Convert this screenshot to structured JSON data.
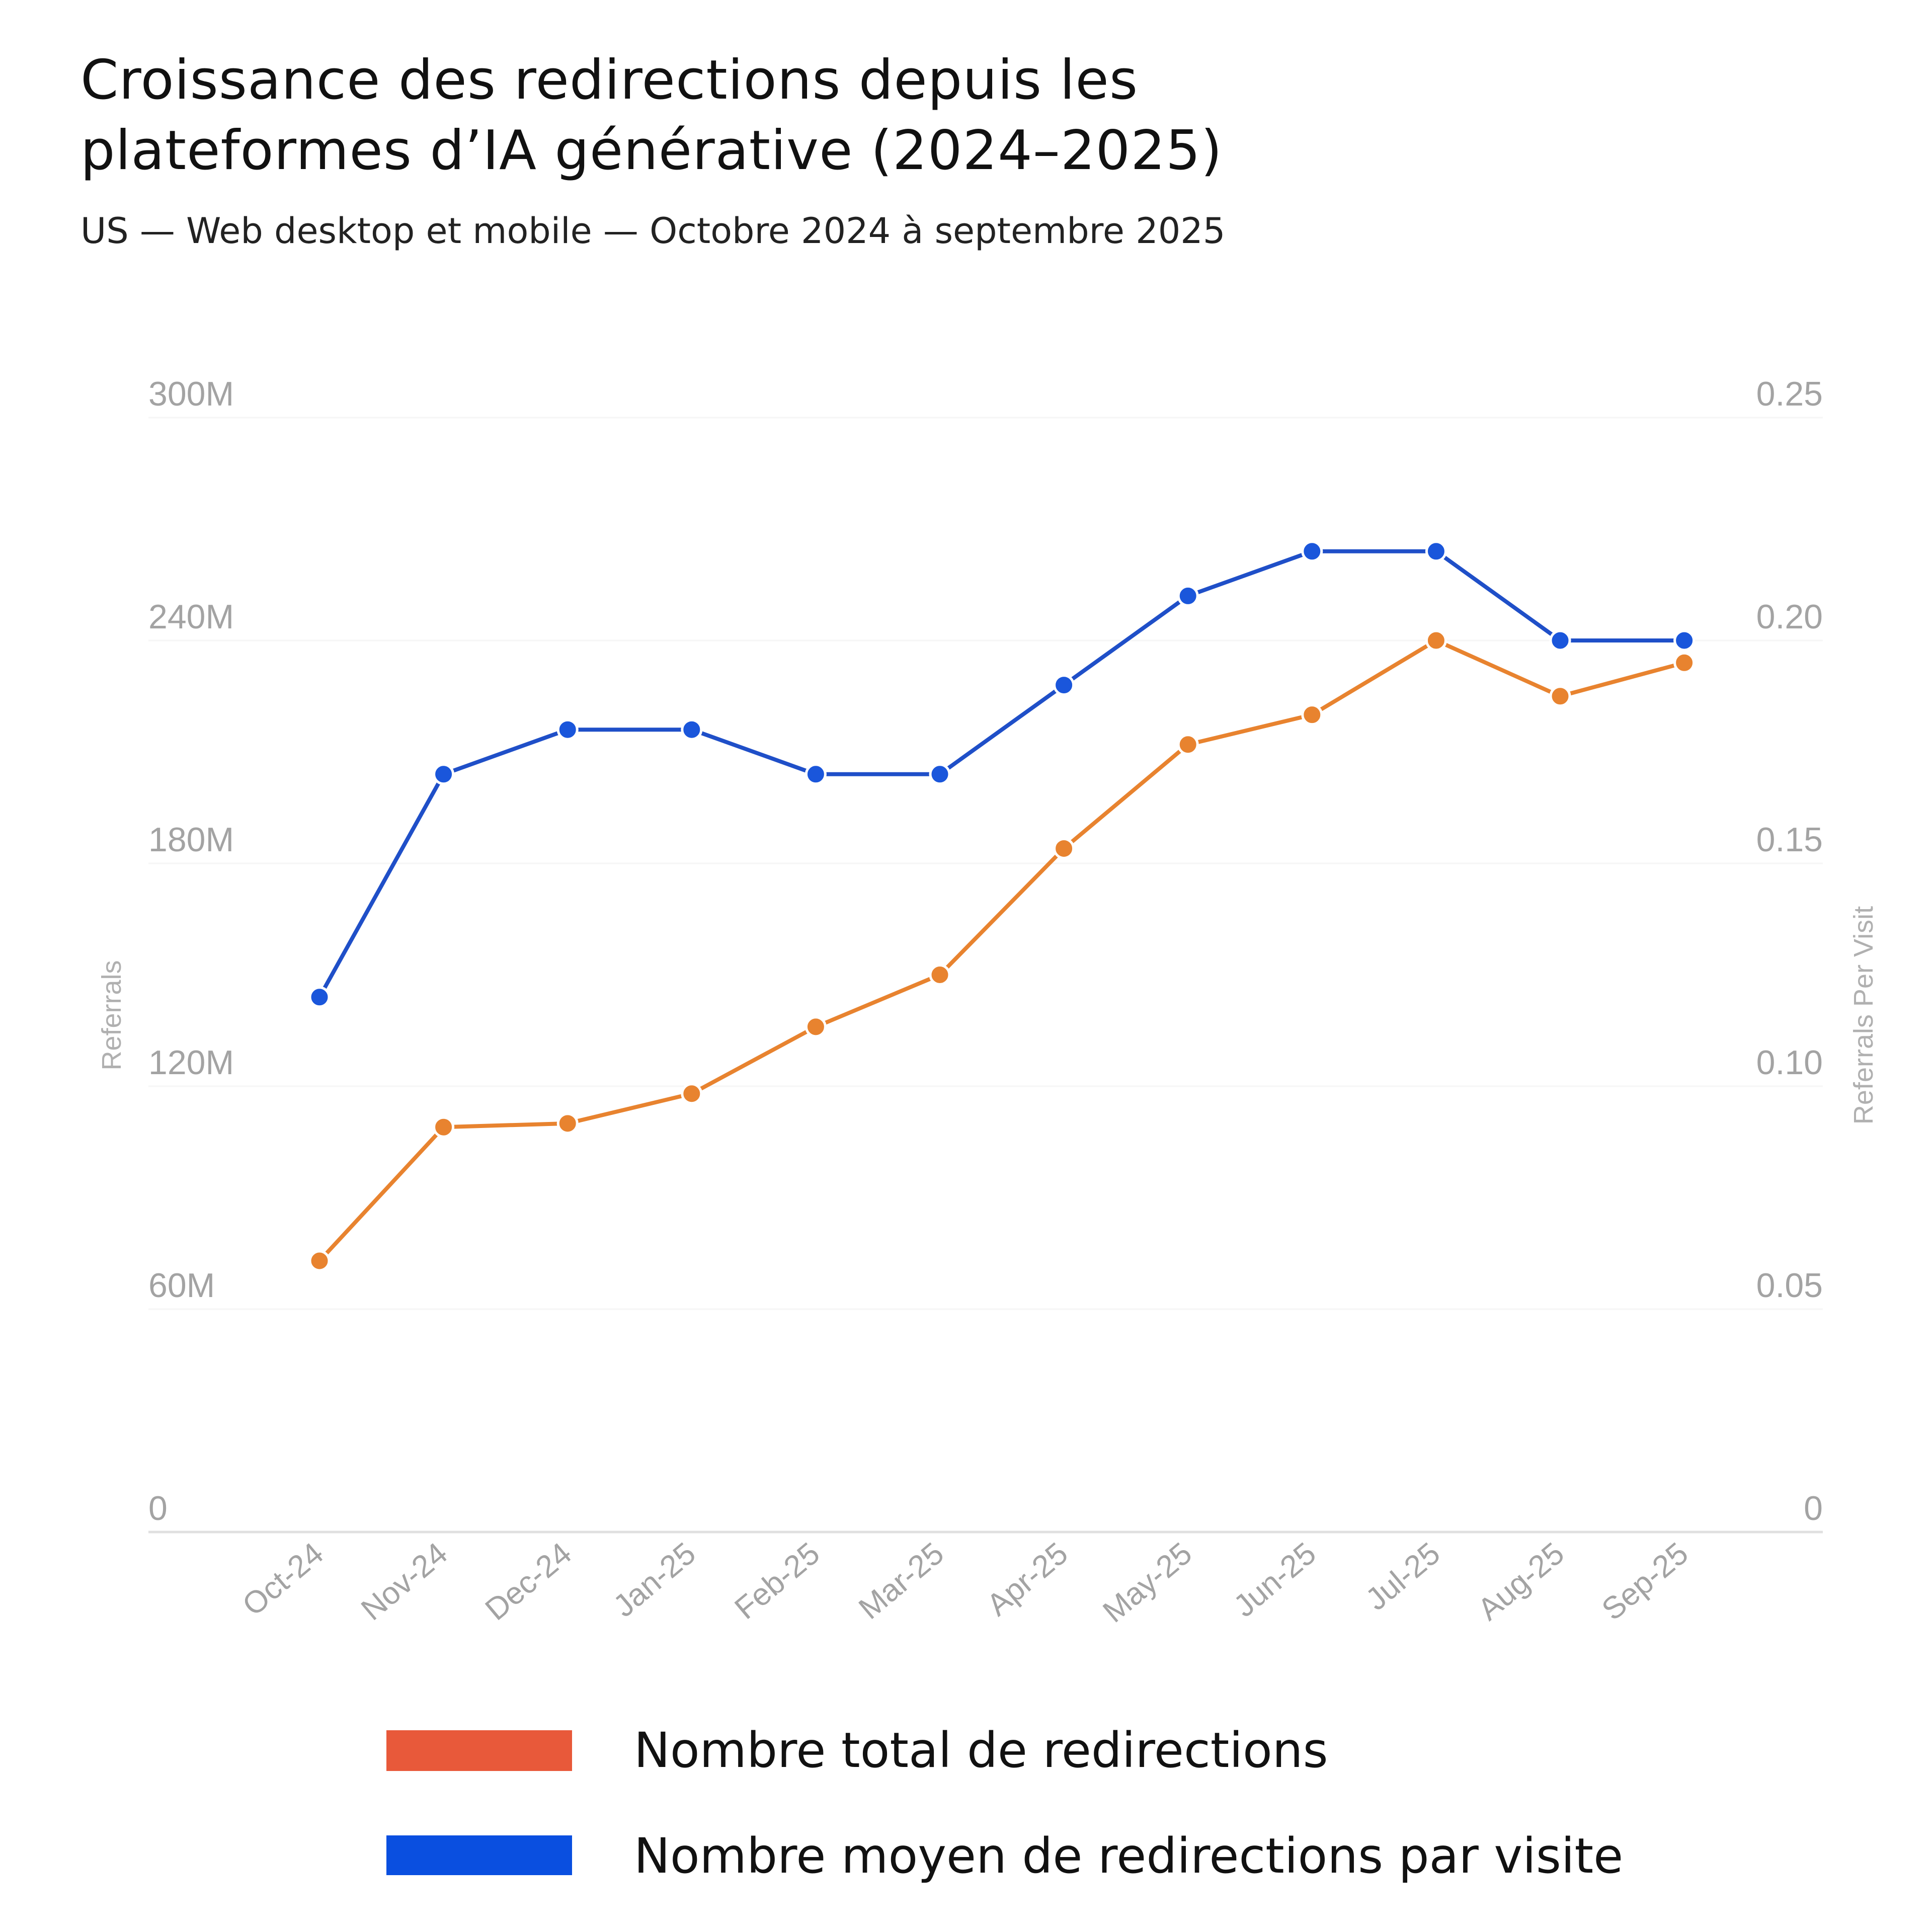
{
  "chart_data": {
    "type": "line",
    "title": "Croissance des redirections depuis les plateformes d’IA générative (2024–2025)",
    "title_lines": [
      "Croissance des redirections depuis les",
      "plateformes d’IA générative (2024–2025)"
    ],
    "subtitle": "US — Web desktop et mobile — Octobre 2024 à septembre 2025",
    "categories": [
      "Oct-24",
      "Nov-24",
      "Dec-24",
      "Jan-25",
      "Feb-25",
      "Mar-25",
      "Apr-25",
      "May-25",
      "Jun-25",
      "Jul-25",
      "Aug-25",
      "Sep-25"
    ],
    "ylabel": "Referrals",
    "y2label": "Referrals Per Visit",
    "ylim": [
      0,
      300000000
    ],
    "y2lim": [
      0,
      0.25
    ],
    "yticks": [
      "0",
      "60M",
      "120M",
      "180M",
      "240M",
      "300M"
    ],
    "y2ticks": [
      "0",
      "0.05",
      "0.10",
      "0.15",
      "0.20",
      "0.25"
    ],
    "grid": true,
    "legend_placement": "bottom",
    "series": [
      {
        "name": "Nombre total de redirections",
        "axis": "left",
        "color": "#e8832f",
        "legend_color": "#e8593a",
        "values": [
          73000000,
          109000000,
          110000000,
          118000000,
          136000000,
          150000000,
          184000000,
          212000000,
          220000000,
          240000000,
          225000000,
          234000000
        ]
      },
      {
        "name": "Nombre moyen de redirections par visite",
        "axis": "right",
        "color": "#1f4fc8",
        "legend_color": "#0a4fe0",
        "values": [
          0.12,
          0.17,
          0.18,
          0.18,
          0.17,
          0.17,
          0.19,
          0.21,
          0.22,
          0.22,
          0.2,
          0.2
        ]
      }
    ]
  }
}
